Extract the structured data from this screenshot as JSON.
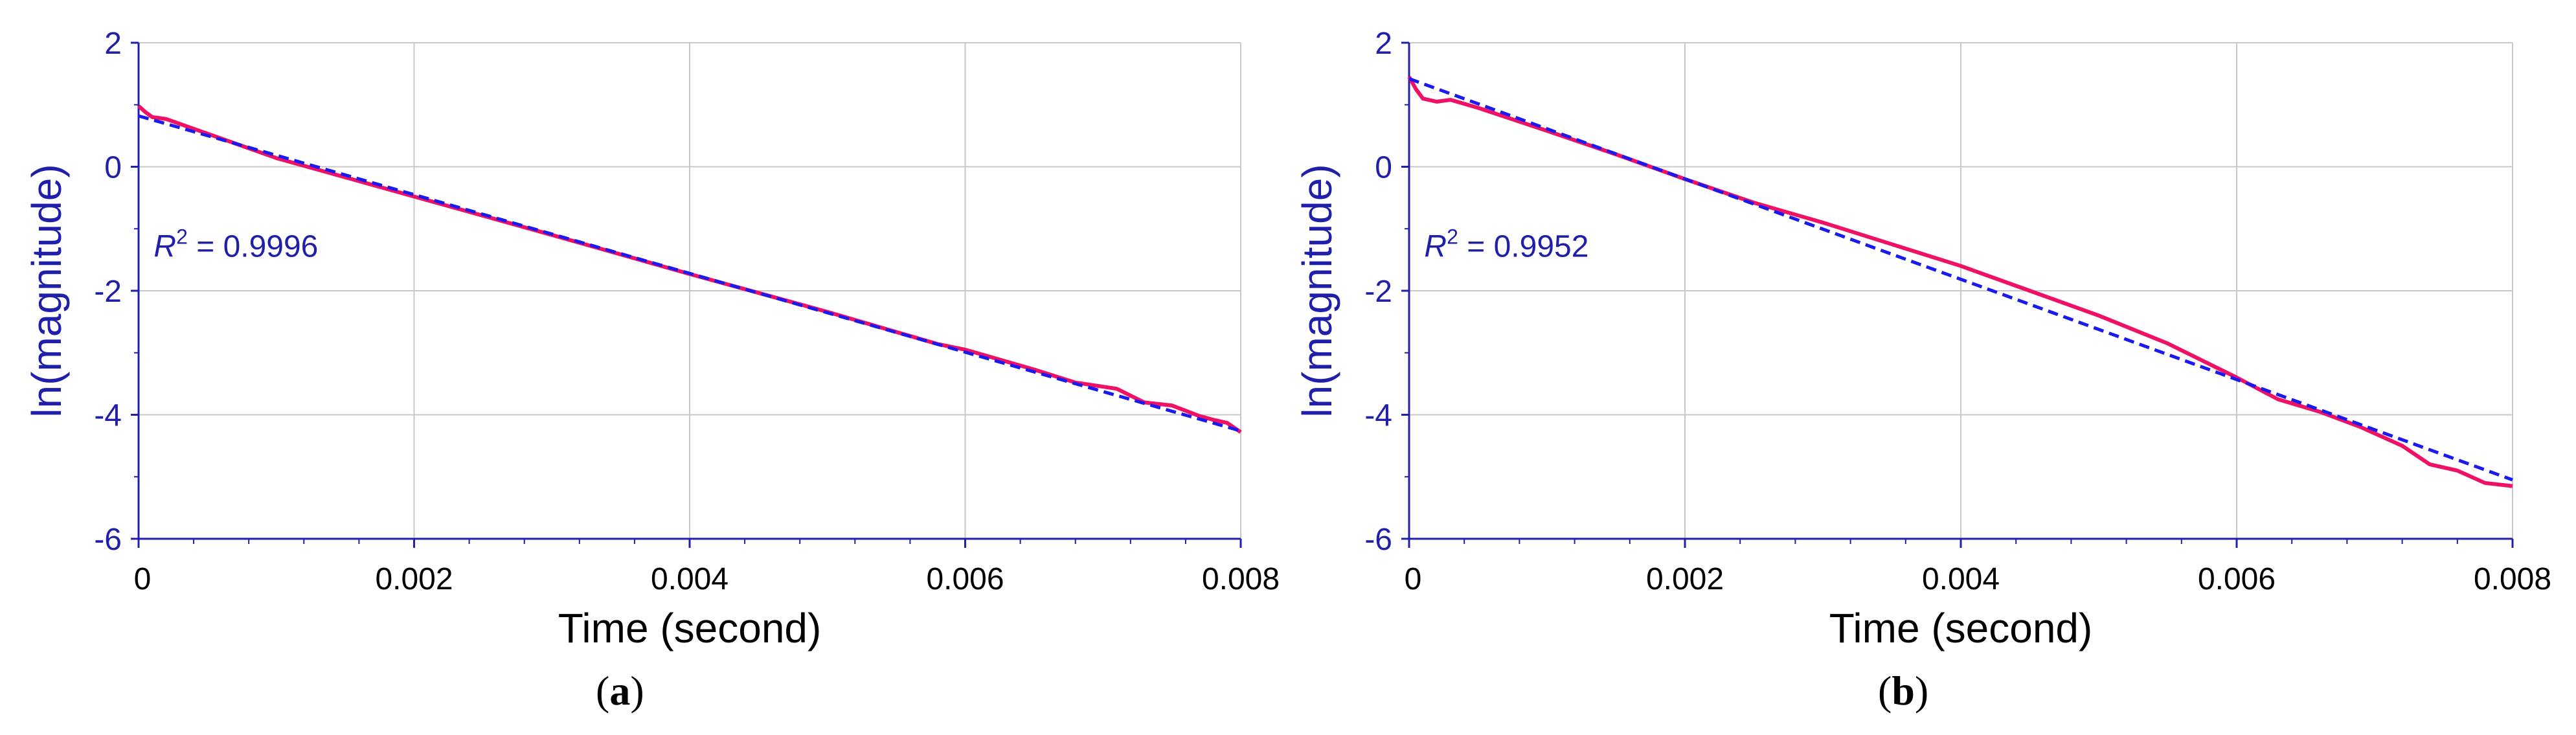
{
  "chart_data": [
    {
      "type": "line",
      "panel_label": "a",
      "ylabel": "ln(magnitude)",
      "xlabel": "Time (second)",
      "xlim": [
        0,
        0.008
      ],
      "ylim": [
        -6,
        2
      ],
      "x_ticks": [
        0,
        0.002,
        0.004,
        0.006,
        0.008
      ],
      "x_tick_labels": [
        "0",
        "0.002",
        "0.004",
        "0.006",
        "0.008"
      ],
      "y_ticks": [
        -6,
        -4,
        -2,
        0,
        2
      ],
      "y_tick_labels": [
        "-6",
        "-4",
        "-2",
        "0",
        "2"
      ],
      "grid": true,
      "annotation": {
        "italic": "R",
        "sup": "2",
        "text": " = 0.9996",
        "x": 0.00011,
        "y": -1.45
      },
      "series": [
        {
          "style": "solid",
          "color": "#ee1166",
          "x": [
            0,
            5e-05,
            0.0001,
            0.0002,
            0.001,
            0.002,
            0.003,
            0.004,
            0.005,
            0.0058,
            0.006,
            0.0065,
            0.0068,
            0.0071,
            0.0073,
            0.0075,
            0.0077,
            0.0078,
            0.0079,
            0.008
          ],
          "y": [
            0.98,
            0.88,
            0.8,
            0.77,
            0.14,
            -0.48,
            -1.1,
            -1.73,
            -2.34,
            -2.86,
            -2.95,
            -3.27,
            -3.48,
            -3.58,
            -3.8,
            -3.85,
            -4.02,
            -4.08,
            -4.13,
            -4.28
          ]
        },
        {
          "style": "dashed",
          "color": "#1a1aee",
          "x": [
            0,
            0.008
          ],
          "y": [
            0.82,
            -4.26
          ]
        }
      ]
    },
    {
      "type": "line",
      "panel_label": "b",
      "ylabel": "ln(magnitude)",
      "xlabel": "Time (second)",
      "xlim": [
        0,
        0.008
      ],
      "ylim": [
        -6,
        2
      ],
      "x_ticks": [
        0,
        0.002,
        0.004,
        0.006,
        0.008
      ],
      "x_tick_labels": [
        "0",
        "0.002",
        "0.004",
        "0.006",
        "0.008"
      ],
      "y_ticks": [
        -6,
        -4,
        -2,
        0,
        2
      ],
      "y_tick_labels": [
        "-6",
        "-4",
        "-2",
        "0",
        "2"
      ],
      "grid": true,
      "annotation": {
        "italic": "R",
        "sup": "2",
        "text": " = 0.9952",
        "x": 0.00011,
        "y": -1.45
      },
      "series": [
        {
          "style": "solid",
          "color": "#ee1166",
          "x": [
            0,
            5e-05,
            0.0001,
            0.0002,
            0.0003,
            0.0005,
            0.001,
            0.0015,
            0.002,
            0.0025,
            0.003,
            0.0035,
            0.004,
            0.0045,
            0.005,
            0.0055,
            0.006,
            0.0063,
            0.0066,
            0.0069,
            0.0072,
            0.0074,
            0.0076,
            0.0078,
            0.008
          ],
          "y": [
            1.45,
            1.25,
            1.1,
            1.05,
            1.08,
            0.95,
            0.58,
            0.2,
            -0.2,
            -0.58,
            -0.9,
            -1.25,
            -1.6,
            -2.0,
            -2.4,
            -2.85,
            -3.4,
            -3.75,
            -3.95,
            -4.2,
            -4.5,
            -4.8,
            -4.9,
            -5.1,
            -5.15
          ]
        },
        {
          "style": "dashed",
          "color": "#1a1aee",
          "x": [
            0,
            0.008
          ],
          "y": [
            1.42,
            -5.05
          ]
        }
      ]
    }
  ]
}
